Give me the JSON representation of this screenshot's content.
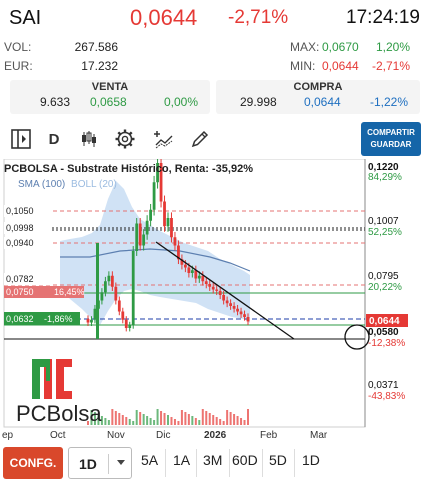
{
  "header": {
    "symbol": "SAI",
    "price": "0,0644",
    "change": "-2,71%",
    "time": "17:24:19"
  },
  "stats": {
    "vol_label": "VOL:",
    "vol_value": "267.586",
    "eur_label": "EUR:",
    "eur_value": "17.232",
    "max_label": "MAX:",
    "max_value": "0,0670",
    "max_pct": "1,20%",
    "min_label": "MIN:",
    "min_value": "0,0644",
    "min_pct": "-2,71%"
  },
  "book": {
    "venta_title": "VENTA",
    "venta_qty": "9.633",
    "venta_price": "0,0658",
    "venta_pct": "0,00%",
    "compra_title": "COMPRA",
    "compra_qty": "29.998",
    "compra_price": "0,0644",
    "compra_pct": "-1,22%"
  },
  "toolbar": {
    "period": "D",
    "share_label_1": "COMPARTIR",
    "share_label_2": "GUARDAR",
    "icons": [
      "panel-toggle-icon",
      "candlestick-icon",
      "gear-icon",
      "indicator-add-icon",
      "pencil-icon"
    ]
  },
  "chart": {
    "title": "PCBOLSA - Substrate Histórico, Renta: -35,92%",
    "sma_label": "SMA (100)",
    "boll_label": "BOLL (20)",
    "logo_text": "PCBolsa"
  },
  "chart_data": {
    "type": "candlestick",
    "title": "PCBOLSA - Substrate Histórico, Renta: -35,92%",
    "x_tick_labels": [
      "ep",
      "Oct",
      "Nov",
      "Dic",
      "2026",
      "Feb",
      "Mar"
    ],
    "right_axis": [
      {
        "value": "0,1220",
        "pct": "84,29%"
      },
      {
        "value": "0,1007",
        "pct": "52,25%"
      },
      {
        "value": "0,0795",
        "pct": "20,22%"
      },
      {
        "value": "0,0644",
        "pct": ""
      },
      {
        "value": "0,0580",
        "pct": "-12,38%"
      },
      {
        "value": "0,0371",
        "pct": "-43,83%"
      }
    ],
    "left_levels": [
      {
        "value": "0,1050",
        "pct": ""
      },
      {
        "value": "0,0998",
        "pct": ""
      },
      {
        "value": "0,0940",
        "pct": ""
      },
      {
        "value": "0,0782",
        "pct": ""
      },
      {
        "value": "0,0750",
        "pct": "16,45%"
      },
      {
        "value": "0,0632",
        "pct": "-1,86%"
      }
    ],
    "close_series": [
      0.064,
      0.065,
      0.069,
      0.072,
      0.075,
      0.079,
      0.081,
      0.077,
      0.072,
      0.068,
      0.065,
      0.062,
      0.063,
      0.09,
      0.1,
      0.092,
      0.096,
      0.101,
      0.105,
      0.115,
      0.122,
      0.108,
      0.099,
      0.102,
      0.095,
      0.092,
      0.087,
      0.085,
      0.084,
      0.082,
      0.083,
      0.08,
      0.081,
      0.079,
      0.078,
      0.077,
      0.076,
      0.0755,
      0.074,
      0.072,
      0.071,
      0.07,
      0.069,
      0.068,
      0.067,
      0.066,
      0.0644
    ],
    "colors": {
      "up": "#2e9a44",
      "down": "#e53935",
      "sma": "#5c7fb0",
      "boll": "#aacbec",
      "trend": "#111111"
    }
  },
  "bottom": {
    "confg_label": "CONFG.",
    "interval": "1D",
    "ranges": [
      "5A",
      "1A",
      "3M",
      "60D",
      "5D",
      "1D"
    ]
  }
}
